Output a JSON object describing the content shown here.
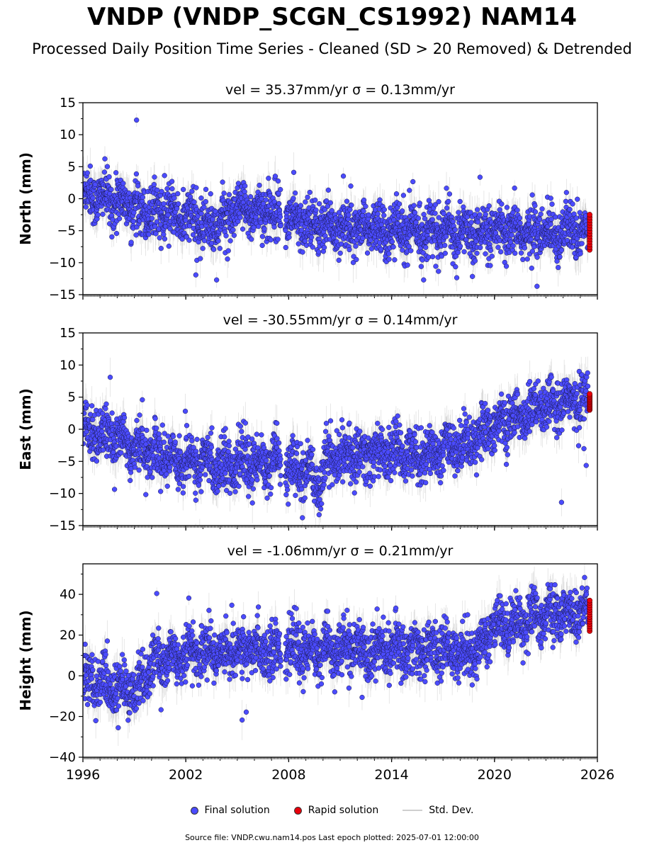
{
  "title": "VNDP (VNDP_SCGN_CS1992) NAM14",
  "subtitle": "Processed Daily Position Time Series - Cleaned (SD > 20 Removed) & Detrended",
  "legend": {
    "final": "Final solution",
    "rapid": "Rapid solution",
    "std": "Std. Dev."
  },
  "source": "Source file: VNDP.cwu.nam14.pos  Last epoch plotted: 2025-07-01 12:00:00",
  "colors": {
    "final": "#4b4bff",
    "rapid": "#e8000b",
    "std": "#c8c8c8"
  },
  "chart_data": [
    {
      "type": "scatter",
      "title": "vel = 35.37mm/yr   σ = 0.13mm/yr",
      "ylabel": "North (mm)",
      "ylim": [
        -15,
        15
      ],
      "yticks": [
        -15,
        -10,
        -5,
        0,
        5,
        10,
        15
      ],
      "xlim": [
        1996,
        2026
      ],
      "xticks": [
        1996,
        2002,
        2008,
        2014,
        2020,
        2026
      ],
      "trend": [
        [
          1996,
          1.0
        ],
        [
          1998,
          -0.5
        ],
        [
          2000,
          -2.0
        ],
        [
          2002,
          -3.0
        ],
        [
          2003.5,
          -4.5
        ],
        [
          2005,
          -2.0
        ],
        [
          2007.5,
          -2.0
        ],
        [
          2008,
          -3.5
        ],
        [
          2012,
          -4.5
        ],
        [
          2016,
          -5.0
        ],
        [
          2020,
          -5.5
        ],
        [
          2025.5,
          -5.0
        ]
      ],
      "rapid_range": [
        -8,
        -2.5
      ]
    },
    {
      "type": "scatter",
      "title": "vel = -30.55mm/yr   σ = 0.14mm/yr",
      "ylabel": "East (mm)",
      "ylim": [
        -15,
        15
      ],
      "yticks": [
        -15,
        -10,
        -5,
        0,
        5,
        10,
        15
      ],
      "xlim": [
        1996,
        2026
      ],
      "xticks": [
        1996,
        2002,
        2008,
        2014,
        2020,
        2026
      ],
      "trend": [
        [
          1996,
          0.0
        ],
        [
          1998,
          -1.5
        ],
        [
          2000,
          -3.5
        ],
        [
          2002,
          -5.0
        ],
        [
          2005,
          -5.5
        ],
        [
          2007.5,
          -5.0
        ],
        [
          2008,
          -6.0
        ],
        [
          2009.8,
          -8.0
        ],
        [
          2010.2,
          -4.5
        ],
        [
          2014,
          -3.5
        ],
        [
          2016,
          -4.0
        ],
        [
          2018,
          -2.5
        ],
        [
          2020,
          0.5
        ],
        [
          2022,
          2.5
        ],
        [
          2024,
          4.5
        ],
        [
          2025.5,
          4.5
        ]
      ],
      "rapid_range": [
        3,
        5.5
      ]
    },
    {
      "type": "scatter",
      "title": "vel = -1.06mm/yr   σ = 0.21mm/yr",
      "ylabel": "Height (mm)",
      "ylim": [
        -40,
        55
      ],
      "yticks": [
        -40,
        -20,
        0,
        20,
        40
      ],
      "xlim": [
        1996,
        2026
      ],
      "xticks": [
        1996,
        2002,
        2008,
        2014,
        2020,
        2026
      ],
      "trend": [
        [
          1996,
          -2.0
        ],
        [
          1999,
          -8.0
        ],
        [
          2000,
          5.0
        ],
        [
          2002,
          12.0
        ],
        [
          2007.5,
          13.0
        ],
        [
          2008,
          12.0
        ],
        [
          2012,
          13.0
        ],
        [
          2016,
          13.0
        ],
        [
          2019,
          12.0
        ],
        [
          2020,
          24.0
        ],
        [
          2023,
          30.0
        ],
        [
          2025.5,
          30.0
        ]
      ],
      "rapid_range": [
        22,
        37
      ]
    }
  ]
}
